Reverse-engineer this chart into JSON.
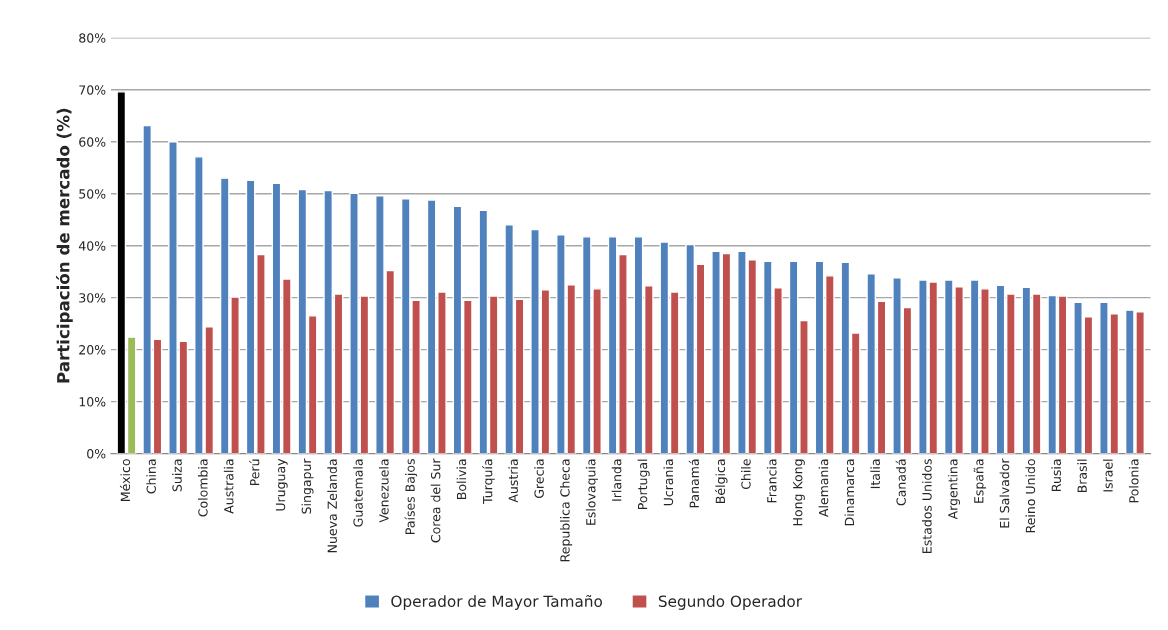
{
  "chart_data": {
    "type": "bar",
    "ylabel": "Participación de mercado (%)",
    "categories": [
      "México",
      "China",
      "Suiza",
      "Colombia",
      "Australia",
      "Perú",
      "Uruguay",
      "Singapur",
      "Nueva Zelanda",
      "Guatemala",
      "Venezuela",
      "Países Bajos",
      "Corea del Sur",
      "Bolivia",
      "Turquía",
      "Austria",
      "Grecia",
      "Republica Checa",
      "Eslovaquia",
      "Irlanda",
      "Portugal",
      "Ucrania",
      "Panamá",
      "Bélgica",
      "Chile",
      "Francia",
      "Hong Kong",
      "Alemania",
      "Dinamarca",
      "Italia",
      "Canadá",
      "Estados Unidos",
      "Argentina",
      "España",
      "El Salvador",
      "Reino Unido",
      "Rusia",
      "Brasil",
      "Israel",
      "Polonia"
    ],
    "series": [
      {
        "name": "Operador de Mayor Tamaño",
        "color": "#4f81bd",
        "colors": [
          "#000000",
          "#4f81bd",
          "#4f81bd",
          "#4f81bd",
          "#4f81bd",
          "#4f81bd",
          "#4f81bd",
          "#4f81bd",
          "#4f81bd",
          "#4f81bd",
          "#4f81bd",
          "#4f81bd",
          "#4f81bd",
          "#4f81bd",
          "#4f81bd",
          "#4f81bd",
          "#4f81bd",
          "#4f81bd",
          "#4f81bd",
          "#4f81bd",
          "#4f81bd",
          "#4f81bd",
          "#4f81bd",
          "#4f81bd",
          "#4f81bd",
          "#4f81bd",
          "#4f81bd",
          "#4f81bd",
          "#4f81bd",
          "#4f81bd",
          "#4f81bd",
          "#4f81bd",
          "#4f81bd",
          "#4f81bd",
          "#4f81bd",
          "#4f81bd",
          "#4f81bd",
          "#4f81bd",
          "#4f81bd",
          "#4f81bd"
        ],
        "values": [
          69.6,
          63.1,
          60.0,
          57.1,
          53.0,
          52.6,
          52.0,
          50.8,
          50.6,
          50.1,
          49.6,
          49.0,
          48.8,
          47.6,
          46.8,
          44.0,
          43.1,
          42.1,
          41.7,
          41.7,
          41.7,
          40.7,
          40.2,
          38.9,
          38.9,
          37.0,
          37.0,
          37.0,
          36.8,
          34.6,
          33.8,
          33.4,
          33.4,
          33.4,
          32.4,
          32.0,
          30.4,
          29.1,
          29.1,
          27.6
        ]
      },
      {
        "name": "Segundo Operador",
        "color": "#c0504d",
        "colors": [
          "#9bbb59",
          "#c0504d",
          "#c0504d",
          "#c0504d",
          "#c0504d",
          "#c0504d",
          "#c0504d",
          "#c0504d",
          "#c0504d",
          "#c0504d",
          "#c0504d",
          "#c0504d",
          "#c0504d",
          "#c0504d",
          "#c0504d",
          "#c0504d",
          "#c0504d",
          "#c0504d",
          "#c0504d",
          "#c0504d",
          "#c0504d",
          "#c0504d",
          "#c0504d",
          "#c0504d",
          "#c0504d",
          "#c0504d",
          "#c0504d",
          "#c0504d",
          "#c0504d",
          "#c0504d",
          "#c0504d",
          "#c0504d",
          "#c0504d",
          "#c0504d",
          "#c0504d",
          "#c0504d",
          "#c0504d",
          "#c0504d",
          "#c0504d",
          "#c0504d"
        ],
        "values": [
          22.4,
          22.0,
          21.6,
          24.4,
          30.1,
          38.3,
          33.6,
          26.5,
          30.7,
          30.3,
          35.2,
          29.5,
          31.1,
          29.5,
          30.3,
          29.7,
          31.5,
          32.5,
          31.7,
          38.3,
          32.3,
          31.1,
          36.4,
          38.5,
          37.3,
          31.9,
          25.6,
          34.2,
          23.2,
          29.3,
          28.1,
          33.0,
          32.1,
          31.7,
          30.7,
          30.7,
          30.3,
          26.3,
          26.9,
          27.3
        ]
      }
    ],
    "ylim": [
      0,
      80
    ],
    "yticks": [
      {
        "value": 0,
        "label": "0%"
      },
      {
        "value": 10,
        "label": "10%"
      },
      {
        "value": 20,
        "label": "20%"
      },
      {
        "value": 30,
        "label": "30%"
      },
      {
        "value": 40,
        "label": "40%"
      },
      {
        "value": 50,
        "label": "50%"
      },
      {
        "value": 60,
        "label": "60%"
      },
      {
        "value": 70,
        "label": "70%"
      },
      {
        "value": 80,
        "label": "80%"
      }
    ],
    "grid": "y",
    "legend": "bottom"
  }
}
